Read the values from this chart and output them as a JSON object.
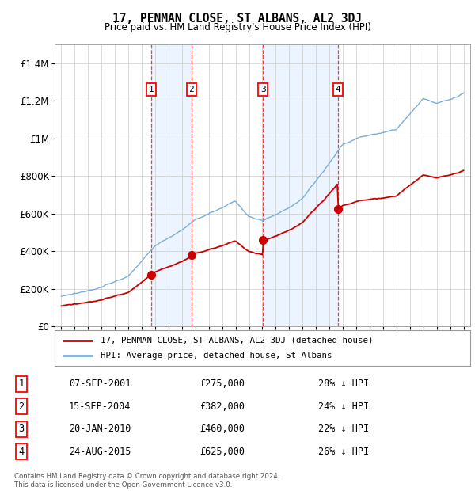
{
  "title": "17, PENMAN CLOSE, ST ALBANS, AL2 3DJ",
  "subtitle": "Price paid vs. HM Land Registry's House Price Index (HPI)",
  "legend_property": "17, PENMAN CLOSE, ST ALBANS, AL2 3DJ (detached house)",
  "legend_hpi": "HPI: Average price, detached house, St Albans",
  "footer": "Contains HM Land Registry data © Crown copyright and database right 2024.\nThis data is licensed under the Open Government Licence v3.0.",
  "sales": [
    {
      "num": 1,
      "date": "07-SEP-2001",
      "date_x": 2001.69,
      "price": 275000,
      "pct": "28%"
    },
    {
      "num": 2,
      "date": "15-SEP-2004",
      "date_x": 2004.71,
      "price": 382000,
      "pct": "24%"
    },
    {
      "num": 3,
      "date": "20-JAN-2010",
      "date_x": 2010.05,
      "price": 460000,
      "pct": "22%"
    },
    {
      "num": 4,
      "date": "24-AUG-2015",
      "date_x": 2015.65,
      "price": 625000,
      "pct": "26%"
    }
  ],
  "table_rows": [
    {
      "num": 1,
      "date": "07-SEP-2001",
      "price": "£275,000",
      "pct": "28% ↓ HPI"
    },
    {
      "num": 2,
      "date": "15-SEP-2004",
      "price": "£382,000",
      "pct": "24% ↓ HPI"
    },
    {
      "num": 3,
      "date": "20-JAN-2010",
      "price": "£460,000",
      "pct": "22% ↓ HPI"
    },
    {
      "num": 4,
      "date": "24-AUG-2015",
      "price": "£625,000",
      "pct": "26% ↓ HPI"
    }
  ],
  "ylim": [
    0,
    1500000
  ],
  "xlim": [
    1994.5,
    2025.5
  ],
  "color_property": "#cc0000",
  "color_hpi": "#7aaddb",
  "color_shade": "#ddeeff",
  "yticks": [
    0,
    200000,
    400000,
    600000,
    800000,
    1000000,
    1200000,
    1400000
  ],
  "ytick_labels": [
    "£0",
    "£200K",
    "£400K",
    "£600K",
    "£800K",
    "£1M",
    "£1.2M",
    "£1.4M"
  ],
  "xticks": [
    1995,
    1996,
    1997,
    1998,
    1999,
    2000,
    2001,
    2002,
    2003,
    2004,
    2005,
    2006,
    2007,
    2008,
    2009,
    2010,
    2011,
    2012,
    2013,
    2014,
    2015,
    2016,
    2017,
    2018,
    2019,
    2020,
    2021,
    2022,
    2023,
    2024,
    2025
  ]
}
